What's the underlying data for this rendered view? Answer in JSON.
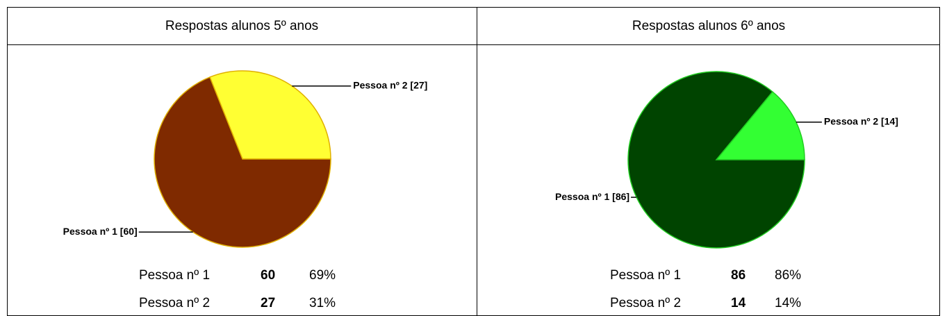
{
  "chart_data": [
    {
      "type": "pie",
      "title": "Respostas alunos 5º anos",
      "categories": [
        "Pessoa nº 1",
        "Pessoa nº 2"
      ],
      "values": [
        60,
        27
      ],
      "slice_labels": [
        "Pessoa nº 1 [60]",
        "Pessoa nº 2 [27]"
      ],
      "percents": [
        69,
        31
      ],
      "percent_labels": [
        "69%",
        "31%"
      ],
      "colors": [
        "#7f2a00",
        "#ffff33"
      ],
      "edge_color": "#e0b000"
    },
    {
      "type": "pie",
      "title": "Respostas alunos 6º anos",
      "categories": [
        "Pessoa nº 1",
        "Pessoa nº 2"
      ],
      "values": [
        86,
        14
      ],
      "slice_labels": [
        "Pessoa nº 1 [86]",
        "Pessoa nº 2 [14]"
      ],
      "percents": [
        86,
        14
      ],
      "percent_labels": [
        "86%",
        "14%"
      ],
      "colors": [
        "#004400",
        "#33ff33"
      ],
      "edge_color": "#22cc22"
    }
  ]
}
